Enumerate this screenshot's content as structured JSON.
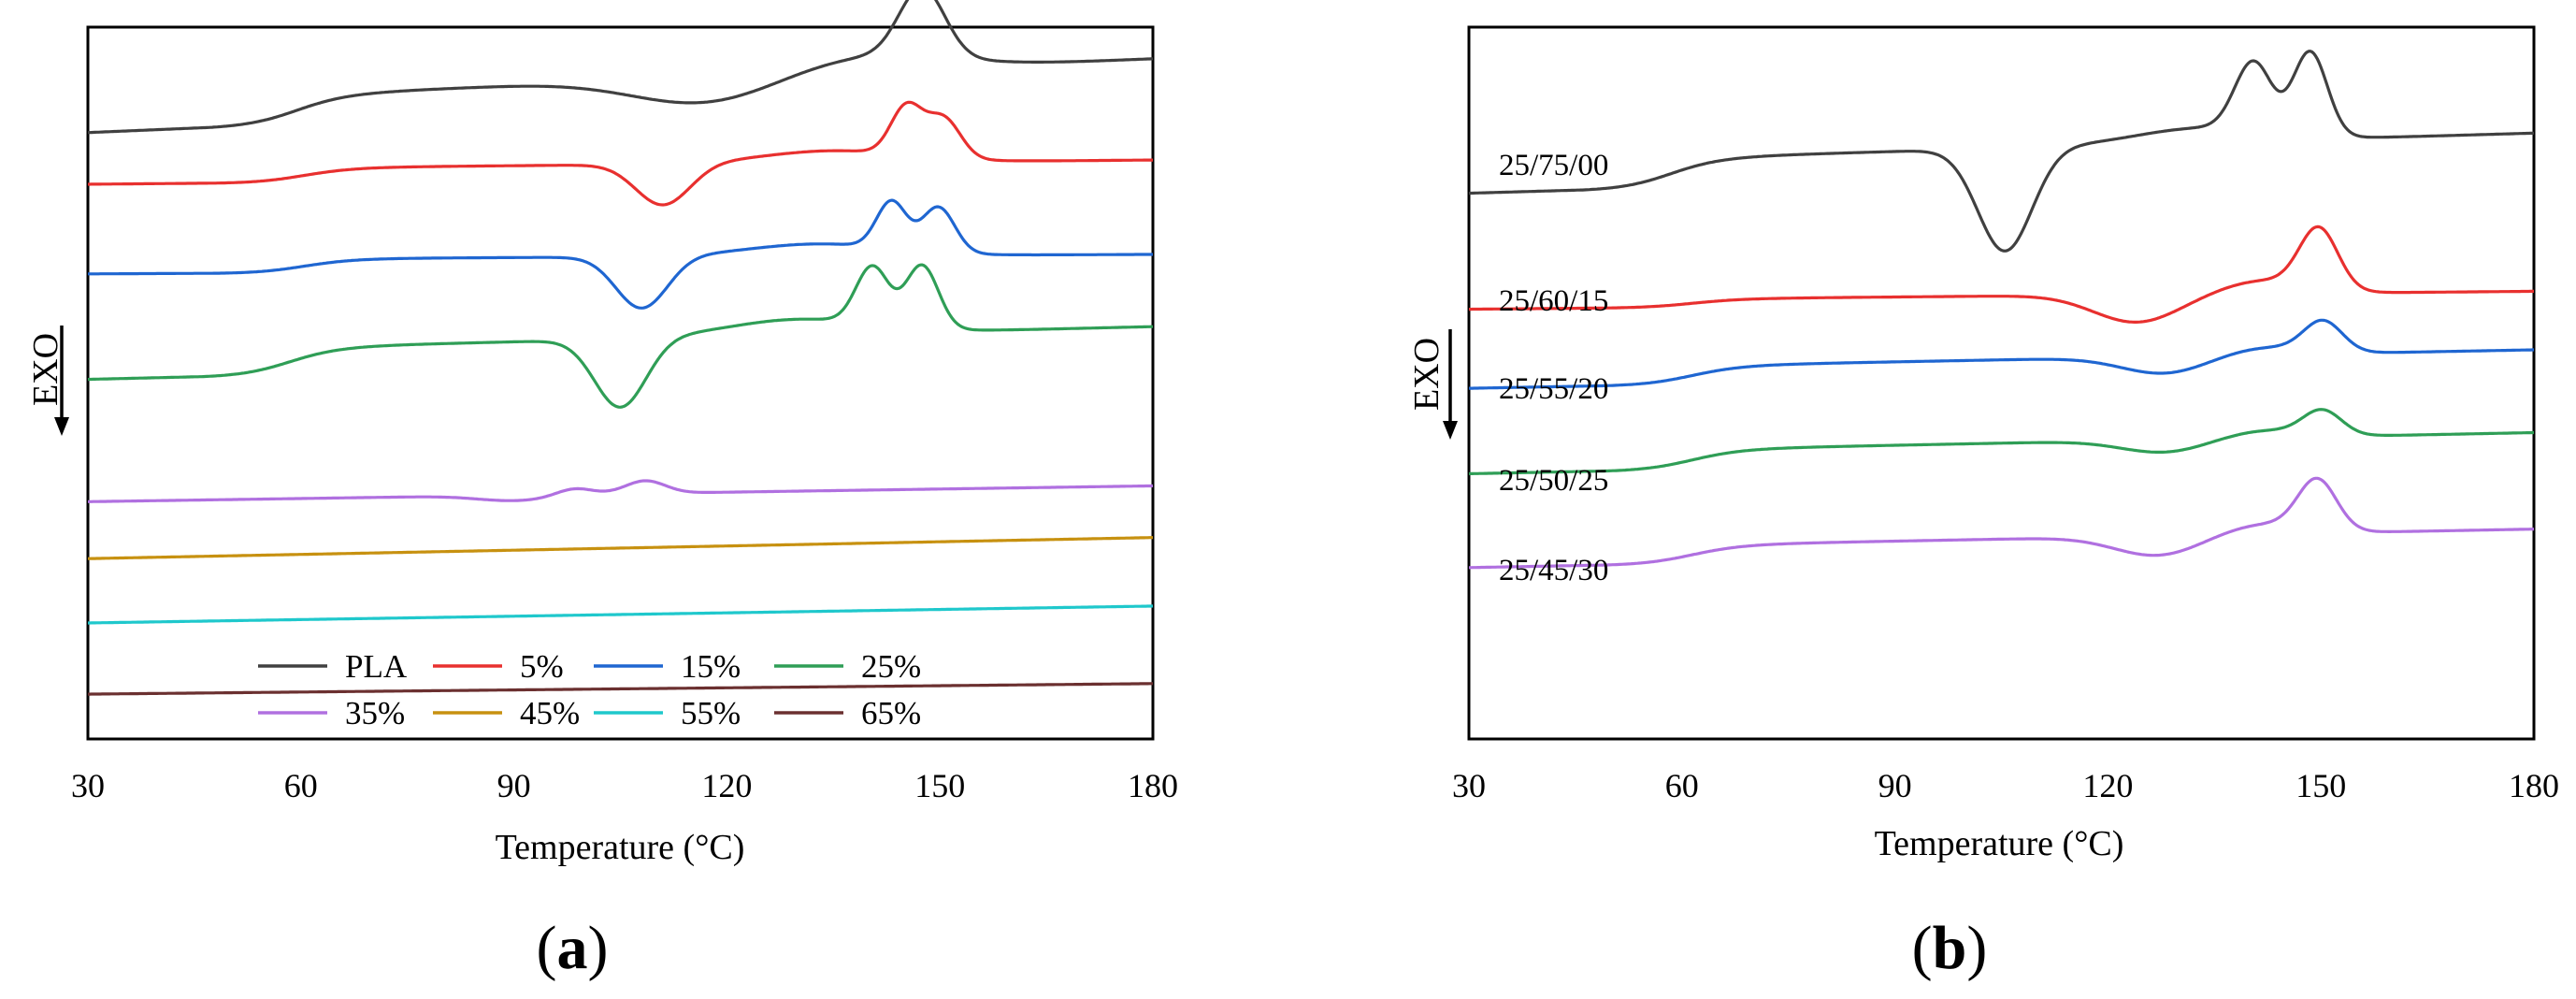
{
  "chart_data": [
    {
      "type": "line",
      "panel_label": {
        "open": "(",
        "letter": "a",
        "close": ")"
      },
      "title": "",
      "xlabel": "Temperature (°C)",
      "ylabel": "EXO",
      "xlim": [
        30,
        180
      ],
      "xticks": [
        "30",
        "60",
        "90",
        "120",
        "150",
        "180"
      ],
      "legend_placement": "bottom-center",
      "legend": [
        "PLA",
        "5%",
        "15%",
        "25%",
        "35%",
        "45%",
        "55%",
        "65%"
      ],
      "series": [
        {
          "name": "PLA",
          "color": "#404040",
          "base_start": 100.0,
          "base_end": 108.5,
          "features": [
            {
              "c": 59,
              "h": 5.5,
              "w": 3.5,
              "k": "step"
            },
            {
              "c": 117,
              "h": -5.0,
              "w": 10,
              "k": "peak"
            },
            {
              "c": 140,
              "h": 3,
              "w": 11,
              "k": "peak"
            },
            {
              "c": 147.5,
              "h": 13,
              "w": 3.2,
              "k": "peak"
            }
          ]
        },
        {
          "name": "5%",
          "color": "#e8302f",
          "base_start": 90.2,
          "base_end": 92.0,
          "features": [
            {
              "c": 60,
              "h": 2.8,
              "w": 3.5,
              "k": "step"
            },
            {
              "c": 111,
              "h": -7.8,
              "w": 3.8,
              "k": "peak"
            },
            {
              "c": 135,
              "h": 2.3,
              "w": 10,
              "k": "peak"
            },
            {
              "c": 145.3,
              "h": 9.2,
              "w": 2.2,
              "k": "peak"
            },
            {
              "c": 150.5,
              "h": 7.6,
              "w": 2.4,
              "k": "peak"
            }
          ]
        },
        {
          "name": "15%",
          "color": "#1f66d1",
          "base_start": 73.2,
          "base_end": 74.2,
          "features": [
            {
              "c": 60,
              "h": 2.7,
              "w": 3.5,
              "k": "step"
            },
            {
              "c": 108,
              "h": -9.8,
              "w": 3.6,
              "k": "peak"
            },
            {
              "c": 133,
              "h": 2.3,
              "w": 10,
              "k": "peak"
            },
            {
              "c": 143.2,
              "h": 9.0,
              "w": 2.1,
              "k": "peak"
            },
            {
              "c": 149.8,
              "h": 8.6,
              "w": 2.3,
              "k": "peak"
            }
          ]
        },
        {
          "name": "25%",
          "color": "#2f9e56",
          "base_start": 53.2,
          "base_end": 58.0,
          "features": [
            {
              "c": 58,
              "h": 5.2,
              "w": 3.5,
              "k": "step"
            },
            {
              "c": 105,
              "h": -13.0,
              "w": 3.6,
              "k": "peak"
            },
            {
              "c": 130,
              "h": 3,
              "w": 10,
              "k": "peak"
            },
            {
              "c": 140.5,
              "h": 11.0,
              "w": 2.3,
              "k": "peak"
            },
            {
              "c": 147.5,
              "h": 12.0,
              "w": 2.3,
              "k": "peak"
            }
          ]
        },
        {
          "name": "35%",
          "color": "#b070e0",
          "base_start": 30.0,
          "base_end": 33.0,
          "features": [
            {
              "c": 90,
              "h": -1.0,
              "w": 5,
              "k": "peak"
            },
            {
              "c": 98.5,
              "h": 1.3,
              "w": 2.5,
              "k": "peak"
            },
            {
              "c": 108.5,
              "h": 2.4,
              "w": 2.8,
              "k": "peak"
            }
          ]
        },
        {
          "name": "45%",
          "color": "#c79110",
          "base_start": 19.2,
          "base_end": 23.2,
          "features": []
        },
        {
          "name": "55%",
          "color": "#1fc8cc",
          "base_start": 7.0,
          "base_end": 10.2,
          "features": []
        },
        {
          "name": "65%",
          "color": "#6b3030",
          "base_start": -6.5,
          "base_end": -4.5,
          "features": []
        }
      ]
    },
    {
      "type": "line",
      "panel_label": {
        "open": "(",
        "letter": "b",
        "close": ")"
      },
      "title": "",
      "xlabel": "Temperature (°C)",
      "ylabel": "EXO",
      "xlim": [
        30,
        180
      ],
      "xticks": [
        "30",
        "60",
        "90",
        "120",
        "150",
        "180"
      ],
      "series": [
        {
          "name": "25/75/00",
          "color": "#404040",
          "base_start": 88.5,
          "base_end": 94.3,
          "features": [
            {
              "c": 58,
              "h": 5.6,
              "w": 3.5,
              "k": "step"
            },
            {
              "c": 105.5,
              "h": -19.5,
              "w": 3.8,
              "k": "peak"
            },
            {
              "c": 133,
              "h": 2.8,
              "w": 9,
              "k": "peak"
            },
            {
              "c": 140.5,
              "h": 13.2,
              "w": 2.6,
              "k": "peak"
            },
            {
              "c": 148.5,
              "h": 16.0,
              "w": 2.4,
              "k": "peak"
            }
          ]
        },
        {
          "name": "25/60/15",
          "color": "#e8302f",
          "base_start": 66.5,
          "base_end": 68.3,
          "features": [
            {
              "c": 61,
              "h": 1.6,
              "w": 3.5,
              "k": "step"
            },
            {
              "c": 124,
              "h": -5.2,
              "w": 6,
              "k": "peak"
            },
            {
              "c": 142,
              "h": 2.5,
              "w": 6,
              "k": "peak"
            },
            {
              "c": 149.7,
              "h": 11.5,
              "w": 2.7,
              "k": "peak"
            }
          ]
        },
        {
          "name": "25/55/20",
          "color": "#1f66d1",
          "base_start": 51.5,
          "base_end": 55.3,
          "features": [
            {
              "c": 61,
              "h": 3.5,
              "w": 3.5,
              "k": "step"
            },
            {
              "c": 128,
              "h": -3.2,
              "w": 6,
              "k": "peak"
            },
            {
              "c": 142,
              "h": 1.5,
              "w": 6,
              "k": "peak"
            },
            {
              "c": 150.3,
              "h": 5.8,
              "w": 2.7,
              "k": "peak"
            }
          ]
        },
        {
          "name": "25/50/25",
          "color": "#2f9e56",
          "base_start": 35.3,
          "base_end": 39.3,
          "features": [
            {
              "c": 61,
              "h": 3.8,
              "w": 3.5,
              "k": "step"
            },
            {
              "c": 128,
              "h": -2.4,
              "w": 6,
              "k": "peak"
            },
            {
              "c": 142,
              "h": 1.5,
              "w": 6,
              "k": "peak"
            },
            {
              "c": 150.2,
              "h": 4.6,
              "w": 2.7,
              "k": "peak"
            }
          ]
        },
        {
          "name": "25/45/30",
          "color": "#b070e0",
          "base_start": 17.5,
          "base_end": 21.3,
          "features": [
            {
              "c": 61,
              "h": 3.5,
              "w": 3.5,
              "k": "step"
            },
            {
              "c": 127,
              "h": -3.7,
              "w": 6,
              "k": "peak"
            },
            {
              "c": 142,
              "h": 2.0,
              "w": 6,
              "k": "peak"
            },
            {
              "c": 149.5,
              "h": 9.5,
              "w": 2.7,
              "k": "peak"
            }
          ]
        }
      ]
    }
  ]
}
